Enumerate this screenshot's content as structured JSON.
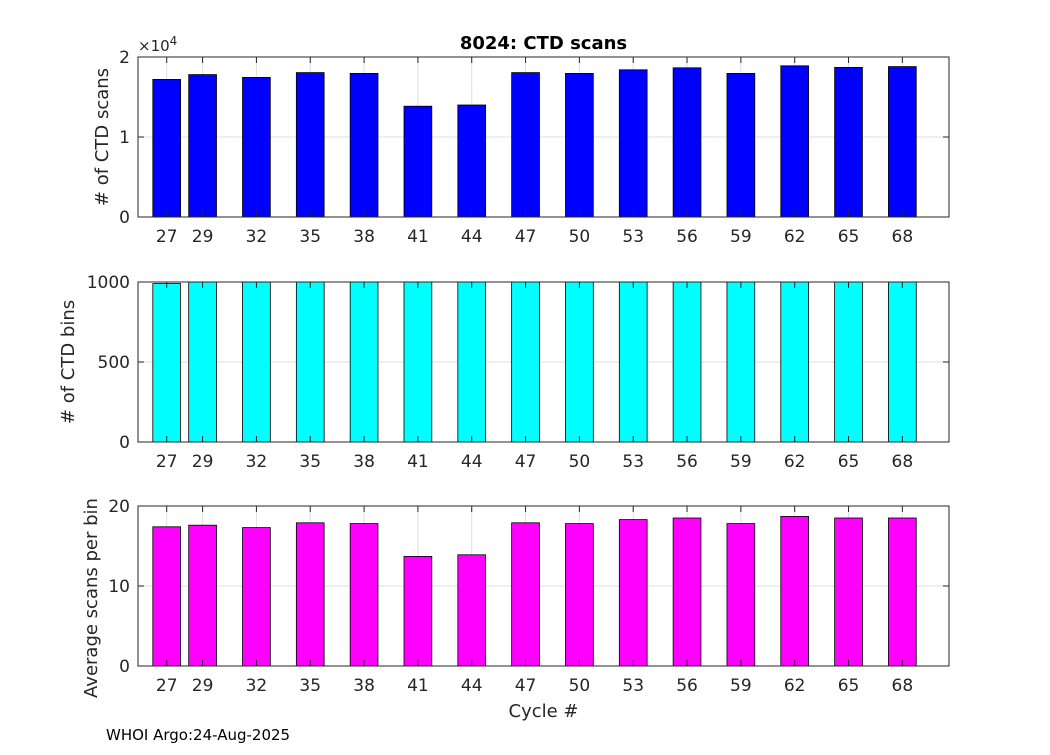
{
  "chart_data": [
    {
      "type": "bar",
      "title": "8024: CTD scans",
      "ylabel": "# of CTD scans",
      "xlabel": "",
      "exponent_label": "×10",
      "exponent_power": "4",
      "color": "#0000ff",
      "categories": [
        27,
        29,
        32,
        35,
        38,
        41,
        44,
        47,
        50,
        53,
        56,
        59,
        62,
        65,
        68
      ],
      "values": [
        17200,
        17800,
        17450,
        18050,
        17950,
        13850,
        14000,
        18050,
        17950,
        18400,
        18650,
        17950,
        18900,
        18700,
        18800
      ],
      "ylim": [
        0,
        20000
      ],
      "yticks": [
        0,
        10000,
        20000
      ],
      "ytick_labels": [
        "0",
        "1",
        "2"
      ],
      "grid": true
    },
    {
      "type": "bar",
      "title": "",
      "ylabel": "# of CTD bins",
      "xlabel": "",
      "color": "#00ffff",
      "categories": [
        27,
        29,
        32,
        35,
        38,
        41,
        44,
        47,
        50,
        53,
        56,
        59,
        62,
        65,
        68
      ],
      "values": [
        990,
        1000,
        1000,
        1000,
        1000,
        1000,
        1000,
        1000,
        1000,
        1000,
        1000,
        1000,
        1000,
        1000,
        1000
      ],
      "ylim": [
        0,
        1000
      ],
      "yticks": [
        0,
        500,
        1000
      ],
      "ytick_labels": [
        "0",
        "500",
        "1000"
      ],
      "grid": true
    },
    {
      "type": "bar",
      "title": "",
      "ylabel": "Average scans per bin",
      "xlabel": "Cycle #",
      "color": "#ff00ff",
      "categories": [
        27,
        29,
        32,
        35,
        38,
        41,
        44,
        47,
        50,
        53,
        56,
        59,
        62,
        65,
        68
      ],
      "values": [
        17.4,
        17.6,
        17.3,
        17.9,
        17.8,
        13.7,
        13.9,
        17.9,
        17.8,
        18.3,
        18.5,
        17.8,
        18.7,
        18.5,
        18.5
      ],
      "ylim": [
        0,
        20
      ],
      "yticks": [
        0,
        10,
        20
      ],
      "ytick_labels": [
        "0",
        "10",
        "20"
      ],
      "grid": true
    }
  ],
  "footer": "WHOI Argo:24-Aug-2025"
}
